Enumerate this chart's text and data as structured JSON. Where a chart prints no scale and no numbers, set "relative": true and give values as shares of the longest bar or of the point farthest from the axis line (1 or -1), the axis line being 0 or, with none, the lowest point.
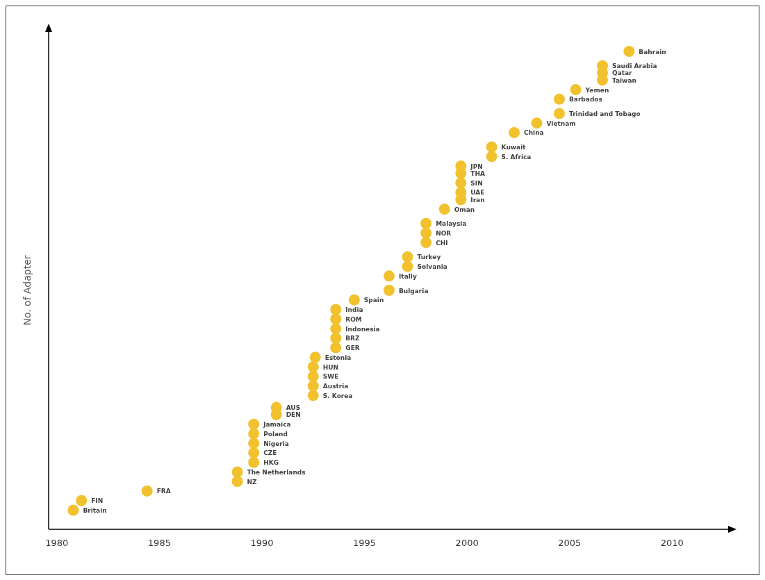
{
  "chart_data": {
    "type": "scatter",
    "ylabel": "No. of Adapter",
    "relative": true,
    "xlim": [
      1979.6,
      2012.8
    ],
    "xticks": [
      1980,
      1985,
      1990,
      1995,
      2000,
      2005,
      2010
    ],
    "tick_labels": "x",
    "marker": "circle",
    "grid": false,
    "series": [
      {
        "color": "#f2c12e",
        "x": [
          1980.8,
          1981.2,
          1984.4,
          1988.8,
          1988.8,
          1989.6,
          1989.6,
          1989.6,
          1989.6,
          1989.6,
          1990.7,
          1990.7,
          1992.5,
          1992.5,
          1992.5,
          1992.5,
          1992.6,
          1993.6,
          1993.6,
          1993.6,
          1993.6,
          1993.6,
          1994.5,
          1996.2,
          1996.2,
          1997.1,
          1997.1,
          1998.0,
          1998.0,
          1998.0,
          1998.9,
          1999.7,
          1999.7,
          1999.7,
          1999.7,
          1999.7,
          2001.2,
          2001.2,
          2002.3,
          2003.4,
          2004.5,
          2004.5,
          2005.3,
          2006.6,
          2006.6,
          2006.6,
          2007.9
        ],
        "values": [
          0.04,
          0.06,
          0.08,
          0.1,
          0.12,
          0.14,
          0.16,
          0.18,
          0.2,
          0.22,
          0.24,
          0.255,
          0.28,
          0.3,
          0.32,
          0.34,
          0.36,
          0.38,
          0.4,
          0.42,
          0.44,
          0.46,
          0.48,
          0.5,
          0.53,
          0.55,
          0.57,
          0.6,
          0.62,
          0.64,
          0.67,
          0.69,
          0.705,
          0.725,
          0.745,
          0.76,
          0.78,
          0.8,
          0.83,
          0.85,
          0.87,
          0.9,
          0.92,
          0.94,
          0.955,
          0.97,
          1
        ]
      }
    ],
    "annotations": [
      {
        "text": "Britain",
        "x": 1980.8,
        "y": 0.04
      },
      {
        "text": "FIN",
        "x": 1981.2,
        "y": 0.06
      },
      {
        "text": "FRA",
        "x": 1984.4,
        "y": 0.08
      },
      {
        "text": "NZ",
        "x": 1988.8,
        "y": 0.1
      },
      {
        "text": "The Netherlands",
        "x": 1988.8,
        "y": 0.12
      },
      {
        "text": "HKG",
        "x": 1989.6,
        "y": 0.14
      },
      {
        "text": "CZE",
        "x": 1989.6,
        "y": 0.16
      },
      {
        "text": "Nigeria",
        "x": 1989.6,
        "y": 0.18
      },
      {
        "text": "Poland",
        "x": 1989.6,
        "y": 0.2
      },
      {
        "text": "Jamaica",
        "x": 1989.6,
        "y": 0.22
      },
      {
        "text": "DEN",
        "x": 1990.7,
        "y": 0.24
      },
      {
        "text": "AUS",
        "x": 1990.7,
        "y": 0.255
      },
      {
        "text": "S. Korea",
        "x": 1992.5,
        "y": 0.28
      },
      {
        "text": "Austria",
        "x": 1992.5,
        "y": 0.3
      },
      {
        "text": "SWE",
        "x": 1992.5,
        "y": 0.32
      },
      {
        "text": "HUN",
        "x": 1992.5,
        "y": 0.34
      },
      {
        "text": "Estonia",
        "x": 1992.6,
        "y": 0.36
      },
      {
        "text": "GER",
        "x": 1993.6,
        "y": 0.38
      },
      {
        "text": "BRZ",
        "x": 1993.6,
        "y": 0.4
      },
      {
        "text": "Indonesia",
        "x": 1993.6,
        "y": 0.42
      },
      {
        "text": "ROM",
        "x": 1993.6,
        "y": 0.44
      },
      {
        "text": "India",
        "x": 1993.6,
        "y": 0.46
      },
      {
        "text": "Spain",
        "x": 1994.5,
        "y": 0.48
      },
      {
        "text": "Bulgaria",
        "x": 1996.2,
        "y": 0.5
      },
      {
        "text": "Itally",
        "x": 1996.2,
        "y": 0.53
      },
      {
        "text": "Solvania",
        "x": 1997.1,
        "y": 0.55
      },
      {
        "text": "Turkey",
        "x": 1997.1,
        "y": 0.57
      },
      {
        "text": "CHI",
        "x": 1998.0,
        "y": 0.6
      },
      {
        "text": "NOR",
        "x": 1998.0,
        "y": 0.62
      },
      {
        "text": "Malaysia",
        "x": 1998.0,
        "y": 0.64
      },
      {
        "text": "Oman",
        "x": 1998.9,
        "y": 0.67
      },
      {
        "text": "Iran",
        "x": 1999.7,
        "y": 0.69
      },
      {
        "text": "UAE",
        "x": 1999.7,
        "y": 0.705
      },
      {
        "text": "SIN",
        "x": 1999.7,
        "y": 0.725
      },
      {
        "text": "THA",
        "x": 1999.7,
        "y": 0.745
      },
      {
        "text": "JPN",
        "x": 1999.7,
        "y": 0.76
      },
      {
        "text": "S. Africa",
        "x": 2001.2,
        "y": 0.78
      },
      {
        "text": "Kuwait",
        "x": 2001.2,
        "y": 0.8
      },
      {
        "text": "China",
        "x": 2002.3,
        "y": 0.83
      },
      {
        "text": "Vietnam",
        "x": 2003.4,
        "y": 0.85
      },
      {
        "text": "Trinidad and Tobago",
        "x": 2004.5,
        "y": 0.87
      },
      {
        "text": "Barbados",
        "x": 2004.5,
        "y": 0.9
      },
      {
        "text": "Yemen",
        "x": 2005.3,
        "y": 0.92
      },
      {
        "text": "Taiwan",
        "x": 2006.6,
        "y": 0.94
      },
      {
        "text": "Qatar",
        "x": 2006.6,
        "y": 0.955
      },
      {
        "text": "Saudi Arabia",
        "x": 2006.6,
        "y": 0.97
      },
      {
        "text": "Bahrain",
        "x": 2007.9,
        "y": 1
      }
    ]
  }
}
